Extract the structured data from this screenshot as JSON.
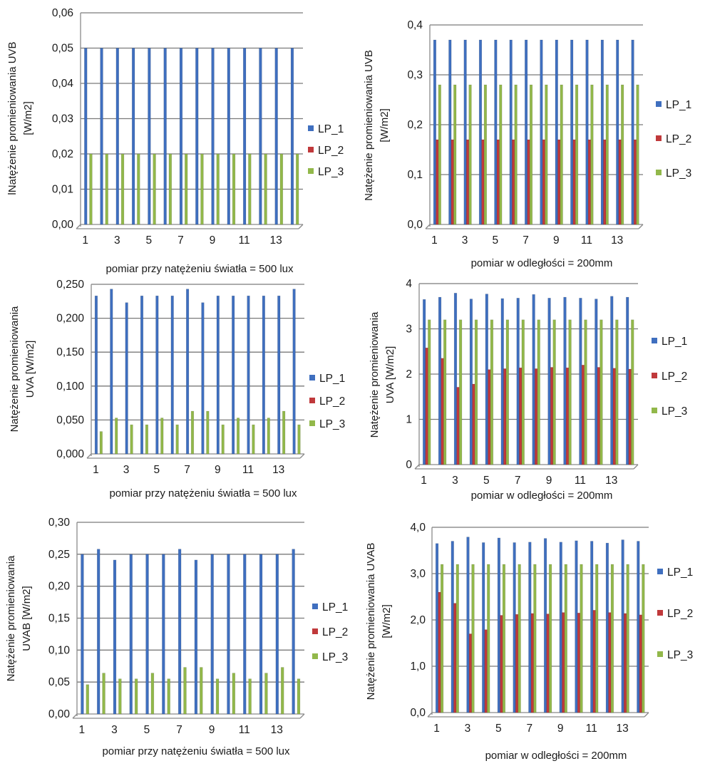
{
  "colors": {
    "LP_1": "#3f6fbf",
    "LP_2": "#c0393b",
    "LP_3": "#92b84a",
    "grid": "#7a7a7a",
    "axis": "#8a8a8a"
  },
  "chart_data": [
    {
      "type": "bar",
      "categories": [
        "1",
        "2",
        "3",
        "4",
        "5",
        "6",
        "7",
        "8",
        "9",
        "10",
        "11",
        "12",
        "13",
        "14"
      ],
      "xtick_labels": [
        "1",
        "3",
        "5",
        "7",
        "9",
        "11",
        "13"
      ],
      "yticks": [
        "0,00",
        "0,01",
        "0,02",
        "0,03",
        "0,04",
        "0,05",
        "0,06"
      ],
      "ylim": [
        0,
        0.06
      ],
      "xlabel": "pomiar przy natężeniu światła = 500 lux",
      "ylabel_lines": [
        "lNatężenie  promieniowania  UVB",
        "[W/m2]"
      ],
      "series": [
        {
          "name": "LP_1",
          "values": [
            0.05,
            0.05,
            0.05,
            0.05,
            0.05,
            0.05,
            0.05,
            0.05,
            0.05,
            0.05,
            0.05,
            0.05,
            0.05,
            0.05
          ]
        },
        {
          "name": "LP_2",
          "values": [
            0,
            0,
            0,
            0,
            0,
            0,
            0,
            0,
            0,
            0,
            0,
            0,
            0,
            0
          ]
        },
        {
          "name": "LP_3",
          "values": [
            0.02,
            0.02,
            0.02,
            0.02,
            0.02,
            0.02,
            0.02,
            0.02,
            0.02,
            0.02,
            0.02,
            0.02,
            0.02,
            0.02
          ]
        }
      ]
    },
    {
      "type": "bar",
      "categories": [
        "1",
        "2",
        "3",
        "4",
        "5",
        "6",
        "7",
        "8",
        "9",
        "10",
        "11",
        "12",
        "13",
        "14"
      ],
      "xtick_labels": [
        "1",
        "3",
        "5",
        "7",
        "9",
        "11",
        "13"
      ],
      "yticks": [
        "0,0",
        "0,1",
        "0,2",
        "0,3",
        "0,4"
      ],
      "ylim": [
        0,
        0.4
      ],
      "xlabel": "pomiar w odległości = 200mm",
      "ylabel_lines": [
        "Natężenie promieniowania  UVB",
        "[W/m2]"
      ],
      "series": [
        {
          "name": "LP_1",
          "values": [
            0.37,
            0.37,
            0.37,
            0.37,
            0.37,
            0.37,
            0.37,
            0.37,
            0.37,
            0.37,
            0.37,
            0.37,
            0.37,
            0.37
          ]
        },
        {
          "name": "LP_2",
          "values": [
            0.17,
            0.17,
            0.17,
            0.17,
            0.17,
            0.17,
            0.17,
            0.17,
            0.17,
            0.17,
            0.17,
            0.17,
            0.17,
            0.17
          ]
        },
        {
          "name": "LP_3",
          "values": [
            0.28,
            0.28,
            0.28,
            0.28,
            0.28,
            0.28,
            0.28,
            0.28,
            0.28,
            0.28,
            0.28,
            0.28,
            0.28,
            0.28
          ]
        }
      ]
    },
    {
      "type": "bar",
      "categories": [
        "1",
        "2",
        "3",
        "4",
        "5",
        "6",
        "7",
        "8",
        "9",
        "10",
        "11",
        "12",
        "13",
        "14"
      ],
      "xtick_labels": [
        "1",
        "3",
        "5",
        "7",
        "9",
        "11",
        "13"
      ],
      "yticks": [
        "0,000",
        "0,050",
        "0,100",
        "0,150",
        "0,200",
        "0,250"
      ],
      "ylim": [
        0,
        0.25
      ],
      "xlabel": "pomiar przy natężeniu światła = 500 lux",
      "ylabel_lines": [
        "Natężenie  promieniowania",
        "UVA [W/m2]"
      ],
      "series": [
        {
          "name": "LP_1",
          "values": [
            0.233,
            0.243,
            0.223,
            0.233,
            0.233,
            0.233,
            0.243,
            0.223,
            0.233,
            0.233,
            0.233,
            0.233,
            0.233,
            0.243
          ]
        },
        {
          "name": "LP_2",
          "values": [
            0,
            0,
            0,
            0,
            0,
            0,
            0,
            0,
            0,
            0,
            0,
            0,
            0,
            0
          ]
        },
        {
          "name": "LP_3",
          "values": [
            0.033,
            0.053,
            0.043,
            0.043,
            0.053,
            0.043,
            0.063,
            0.063,
            0.043,
            0.053,
            0.043,
            0.053,
            0.063,
            0.043
          ]
        }
      ]
    },
    {
      "type": "bar",
      "categories": [
        "1",
        "2",
        "3",
        "4",
        "5",
        "6",
        "7",
        "8",
        "9",
        "10",
        "11",
        "12",
        "13",
        "14"
      ],
      "xtick_labels": [
        "1",
        "3",
        "5",
        "7",
        "9",
        "11",
        "13"
      ],
      "yticks": [
        "0",
        "1",
        "2",
        "3",
        "4"
      ],
      "ylim": [
        0,
        4
      ],
      "xlabel": "pomiar w odległości = 200mm",
      "ylabel_lines": [
        "Natężenie promieniowania",
        "UVA [W/m2]"
      ],
      "series": [
        {
          "name": "LP_1",
          "values": [
            3.65,
            3.7,
            3.79,
            3.66,
            3.77,
            3.67,
            3.68,
            3.76,
            3.68,
            3.7,
            3.68,
            3.66,
            3.72,
            3.7
          ]
        },
        {
          "name": "LP_2",
          "values": [
            2.58,
            2.35,
            1.71,
            1.78,
            2.1,
            2.12,
            2.14,
            2.12,
            2.15,
            2.14,
            2.2,
            2.15,
            2.13,
            2.11
          ]
        },
        {
          "name": "LP_3",
          "values": [
            3.2,
            3.2,
            3.2,
            3.2,
            3.2,
            3.2,
            3.2,
            3.2,
            3.2,
            3.2,
            3.2,
            3.2,
            3.2,
            3.2
          ]
        }
      ]
    },
    {
      "type": "bar",
      "categories": [
        "1",
        "2",
        "3",
        "4",
        "5",
        "6",
        "7",
        "8",
        "9",
        "10",
        "11",
        "12",
        "13",
        "14"
      ],
      "xtick_labels": [
        "1",
        "3",
        "5",
        "7",
        "9",
        "11",
        "13"
      ],
      "yticks": [
        "0,00",
        "0,05",
        "0,10",
        "0,15",
        "0,20",
        "0,25",
        "0,30"
      ],
      "ylim": [
        0,
        0.3
      ],
      "xlabel": "pomiar przy natężeniu światła = 500 lux",
      "ylabel_lines": [
        "Natężenie  promieniowania",
        "UVAB [W/m2]"
      ],
      "series": [
        {
          "name": "LP_1",
          "values": [
            0.25,
            0.258,
            0.241,
            0.25,
            0.25,
            0.25,
            0.258,
            0.241,
            0.25,
            0.25,
            0.25,
            0.25,
            0.25,
            0.258
          ]
        },
        {
          "name": "LP_2",
          "values": [
            0,
            0,
            0,
            0,
            0,
            0,
            0,
            0,
            0,
            0,
            0,
            0,
            0,
            0
          ]
        },
        {
          "name": "LP_3",
          "values": [
            0.046,
            0.064,
            0.055,
            0.055,
            0.064,
            0.055,
            0.073,
            0.073,
            0.055,
            0.064,
            0.055,
            0.064,
            0.073,
            0.055
          ]
        }
      ]
    },
    {
      "type": "bar",
      "categories": [
        "1",
        "2",
        "3",
        "4",
        "5",
        "6",
        "7",
        "8",
        "9",
        "10",
        "11",
        "12",
        "13",
        "14"
      ],
      "xtick_labels": [
        "1",
        "3",
        "5",
        "7",
        "9",
        "11",
        "13"
      ],
      "yticks": [
        "0,0",
        "1,0",
        "2,0",
        "3,0",
        "4,0"
      ],
      "ylim": [
        0,
        4
      ],
      "xlabel": "pomiar w odległości = 200mm",
      "ylabel_lines": [
        "Natężenie promieniowania UVAB",
        "[W/m2]"
      ],
      "series": [
        {
          "name": "LP_1",
          "values": [
            3.65,
            3.7,
            3.79,
            3.67,
            3.77,
            3.67,
            3.68,
            3.76,
            3.68,
            3.71,
            3.7,
            3.66,
            3.73,
            3.7
          ]
        },
        {
          "name": "LP_2",
          "values": [
            2.6,
            2.36,
            1.7,
            1.79,
            2.1,
            2.12,
            2.14,
            2.13,
            2.16,
            2.15,
            2.21,
            2.16,
            2.14,
            2.11
          ]
        },
        {
          "name": "LP_3",
          "values": [
            3.2,
            3.2,
            3.2,
            3.2,
            3.2,
            3.2,
            3.2,
            3.2,
            3.2,
            3.2,
            3.2,
            3.2,
            3.2,
            3.2
          ]
        }
      ]
    }
  ]
}
